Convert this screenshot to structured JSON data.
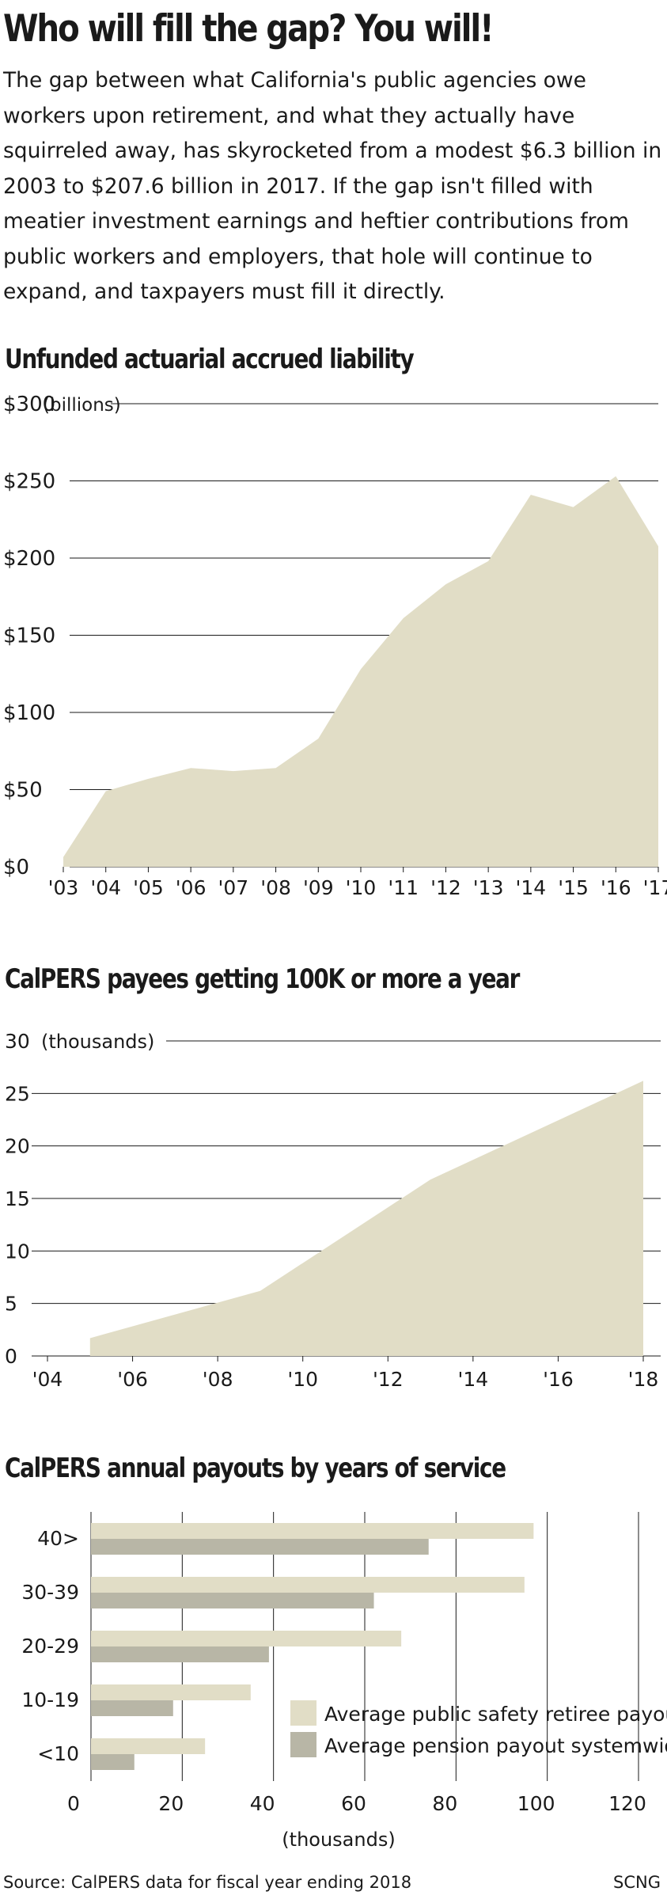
{
  "headline": "Who will fill the gap? You will!",
  "intro": "The gap between what California's public agencies owe workers upon retirement, and what they actually have squirreled away, has skyrocketed from a modest $6.3 billion in 2003 to $207.6 billion in 2017. If the gap isn't filled with meatier investment earnings and heftier contributions from public workers and employers, that hole will continue to expand, and taxpayers must fill it directly.",
  "source": "Source: CalPERS data for fiscal year ending 2018",
  "credit": "SCNG",
  "colors": {
    "fill": "#e1ddc6",
    "fill_dark": "#b8b6a6",
    "grid": "#1a1a1a"
  },
  "chart_data": [
    {
      "type": "area",
      "title": "Unfunded actuarial accrued liability",
      "unit_label": "(billions)",
      "x": [
        2003,
        2004,
        2005,
        2006,
        2007,
        2008,
        2009,
        2010,
        2011,
        2012,
        2013,
        2014,
        2015,
        2016,
        2017
      ],
      "x_tick_labels": [
        "'03",
        "'04",
        "'05",
        "'06",
        "'07",
        "'08",
        "'09",
        "'10",
        "'11",
        "'12",
        "'13",
        "'14",
        "'15",
        "'16",
        "'17"
      ],
      "y": [
        6.3,
        49,
        57,
        64,
        62,
        64,
        83,
        128,
        161,
        183,
        198,
        241,
        233,
        253,
        207.6
      ],
      "y_ticks": [
        0,
        50,
        100,
        150,
        200,
        250,
        300
      ],
      "y_tick_labels": [
        "$0",
        "$50",
        "$100",
        "$150",
        "$200",
        "$250",
        "$300"
      ],
      "ylim": [
        0,
        300
      ],
      "grid": true
    },
    {
      "type": "area",
      "title": "CalPERS payees getting 100K or more a year",
      "unit_label": "(thousands)",
      "x": [
        2005,
        2009,
        2013,
        2018
      ],
      "x_tick_labels": [
        "'04",
        "'06",
        "'08",
        "'10",
        "'12",
        "'14",
        "'16",
        "'18"
      ],
      "x_ticks": [
        2004,
        2006,
        2008,
        2010,
        2012,
        2014,
        2016,
        2018
      ],
      "y": [
        1.7,
        6.2,
        16.8,
        26.2
      ],
      "y_ticks": [
        0,
        5,
        10,
        15,
        20,
        25,
        30
      ],
      "y_tick_labels": [
        "0",
        "5",
        "10",
        "15",
        "20",
        "25",
        "30"
      ],
      "ylim": [
        0,
        30
      ],
      "grid": true
    },
    {
      "type": "bar",
      "orientation": "horizontal",
      "title": "CalPERS annual payouts by years of service",
      "categories": [
        "40>",
        "30-39",
        "20-29",
        "10-19",
        "<10"
      ],
      "series": [
        {
          "name": "Average public safety retiree payout",
          "values": [
            97,
            95,
            68,
            35,
            25
          ]
        },
        {
          "name": "Average pension payout systemwide",
          "values": [
            74,
            62,
            39,
            18,
            9.5
          ]
        }
      ],
      "x_ticks": [
        0,
        20,
        40,
        60,
        80,
        100,
        120
      ],
      "x_tick_labels": [
        "0",
        "20",
        "40",
        "60",
        "80",
        "100",
        "120"
      ],
      "xlim": [
        0,
        120
      ],
      "xlabel": "(thousands)",
      "legend_position": "bottom-right",
      "grid": true
    }
  ]
}
